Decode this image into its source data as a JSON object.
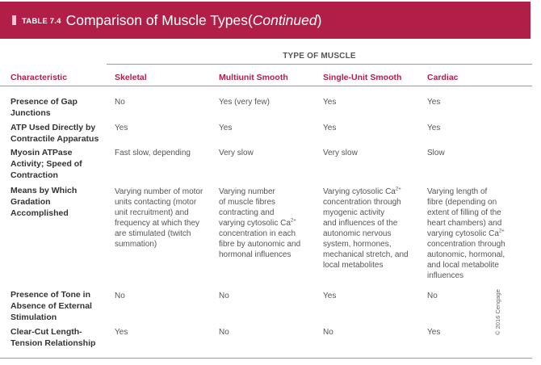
{
  "title": {
    "table_label": "TABLE 7.4",
    "main": "Comparison of Muscle Types",
    "paren_open": " (",
    "continued": "Continued",
    "paren_close": ")"
  },
  "type_header": "TYPE OF MUSCLE",
  "columns": {
    "characteristic": "Characteristic",
    "skeletal": "Skeletal",
    "multiunit": "Multiunit Smooth",
    "singleunit": "Single-Unit Smooth",
    "cardiac": "Cardiac"
  },
  "rows": [
    {
      "label": [
        "Presence of Gap",
        "Junctions"
      ],
      "skeletal": [
        "No"
      ],
      "multiunit": [
        "Yes (very few)"
      ],
      "singleunit": [
        "Yes"
      ],
      "cardiac": [
        "Yes"
      ]
    },
    {
      "label": [
        "ATP Used Directly by",
        "Contractile Apparatus"
      ],
      "skeletal": [
        "Yes"
      ],
      "multiunit": [
        "Yes"
      ],
      "singleunit": [
        "Yes"
      ],
      "cardiac": [
        "Yes"
      ]
    },
    {
      "label": [
        "Myosin ATPase",
        "Activity; Speed of",
        "Contraction"
      ],
      "skeletal": [
        "Fast slow, depending"
      ],
      "multiunit": [
        "Very slow"
      ],
      "singleunit": [
        "Very slow"
      ],
      "cardiac": [
        "Slow"
      ]
    },
    {
      "label": [
        "Means by Which",
        "Gradation",
        "Accomplished"
      ],
      "skeletal": [
        "Varying number of motor",
        "units contacting (motor",
        "unit recruitment) and",
        "frequency at which they",
        "are stimulated (twitch",
        "summation)"
      ],
      "multiunit": [
        "Varying number",
        "of muscle fibres",
        "contracting and",
        "varying cytosolic Ca",
        "concentration in each",
        "fibre by autonomic and",
        "hormonal influences"
      ],
      "singleunit": [
        "Varying cytosolic Ca",
        "concentration through",
        "myogenic activity",
        "and influences of the",
        "autonomic nervous",
        "system, hormones,",
        "mechanical stretch, and",
        "local metabolites"
      ],
      "cardiac": [
        "Varying length of",
        "fibre (depending on",
        "extent of filling of the",
        "heart chambers) and",
        "varying cytosolic Ca",
        "concentration through",
        "autonomic, hormonal,",
        "and local metabolite",
        "influences"
      ]
    },
    {
      "label": [
        "Presence of Tone in",
        "Absence of External",
        "Stimulation"
      ],
      "skeletal": [
        "No"
      ],
      "multiunit": [
        "No"
      ],
      "singleunit": [
        "Yes"
      ],
      "cardiac": [
        "No"
      ]
    },
    {
      "label": [
        "Clear-Cut Length-",
        "Tension Relationship"
      ],
      "skeletal": [
        "Yes"
      ],
      "multiunit": [
        "No"
      ],
      "singleunit": [
        "No"
      ],
      "cardiac": [
        "Yes"
      ]
    }
  ],
  "ca_superscript": "2+",
  "copyright": "© 2016 Cengage"
}
